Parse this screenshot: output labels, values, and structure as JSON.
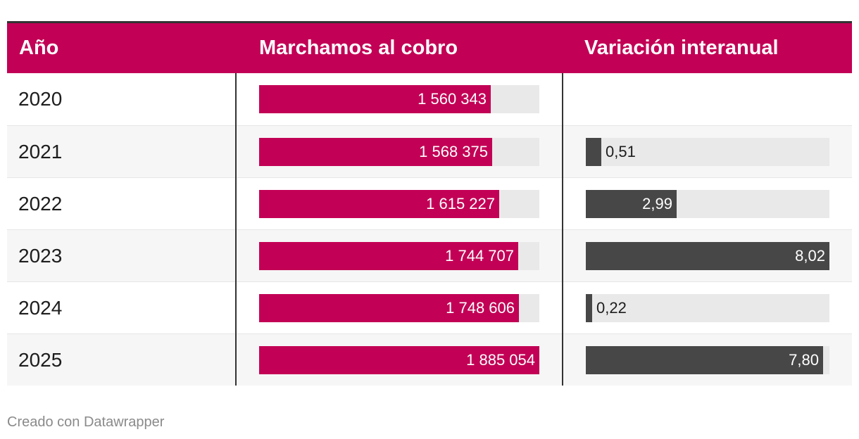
{
  "chart_data": {
    "type": "table",
    "columns": [
      "Año",
      "Marchamos al cobro",
      "Variación interanual"
    ],
    "marchamos_max": 1885054,
    "variacion_max": 8.02,
    "rows": [
      {
        "year": "2020",
        "marchamos": 1560343,
        "marchamos_label": "1 560 343",
        "variacion": null,
        "variacion_label": ""
      },
      {
        "year": "2021",
        "marchamos": 1568375,
        "marchamos_label": "1 568 375",
        "variacion": 0.51,
        "variacion_label": "0,51"
      },
      {
        "year": "2022",
        "marchamos": 1615227,
        "marchamos_label": "1 615 227",
        "variacion": 2.99,
        "variacion_label": "2,99"
      },
      {
        "year": "2023",
        "marchamos": 1744707,
        "marchamos_label": "1 744 707",
        "variacion": 8.02,
        "variacion_label": "8,02"
      },
      {
        "year": "2024",
        "marchamos": 1748606,
        "marchamos_label": "1 748 606",
        "variacion": 0.22,
        "variacion_label": "0,22"
      },
      {
        "year": "2025",
        "marchamos": 1885054,
        "marchamos_label": "1 885 054",
        "variacion": 7.8,
        "variacion_label": "7,80"
      }
    ]
  },
  "colors": {
    "header_bg": "#c20055",
    "marchamos_bar": "#c20055",
    "variacion_bar": "#474747",
    "track": "#e9e9e9"
  },
  "footer": "Creado con Datawrapper"
}
